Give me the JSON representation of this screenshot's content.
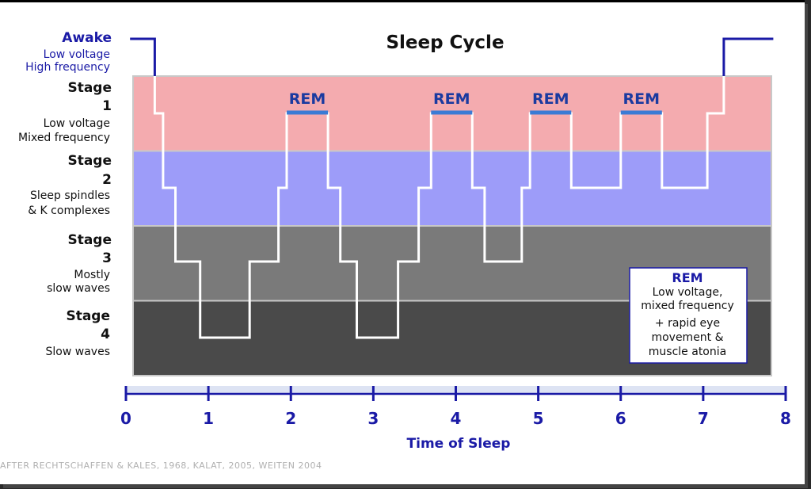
{
  "chart_data": {
    "type": "line",
    "title": "Sleep Cycle",
    "xlabel": "Time of Sleep",
    "xlim": [
      0,
      8
    ],
    "xticks": [
      "0",
      "1",
      "2",
      "3",
      "4",
      "5",
      "6",
      "7",
      "8"
    ],
    "awake": {
      "label": "Awake",
      "desc": [
        "Low voltage",
        "High frequency"
      ]
    },
    "stages": [
      {
        "label": "Stage",
        "number": "1",
        "desc": [
          "Low voltage",
          "Mixed frequency"
        ],
        "color": "#f4abaf"
      },
      {
        "label": "Stage",
        "number": "2",
        "desc": [
          "Sleep spindles",
          "& K complexes"
        ],
        "color": "#9d9cf9"
      },
      {
        "label": "Stage",
        "number": "3",
        "desc": [
          "Mostly",
          "slow waves"
        ],
        "color": "#7a7a7a"
      },
      {
        "label": "Stage",
        "number": "4",
        "desc": [
          "Slow waves"
        ],
        "color": "#4a4a4a"
      }
    ],
    "series": [
      {
        "x": [
          0.05,
          0.35,
          0.35,
          0.45,
          0.45,
          0.6,
          0.6,
          0.9,
          0.9,
          1.5,
          1.5,
          1.85,
          1.85,
          1.95,
          1.95,
          2.45,
          2.45,
          2.6,
          2.6,
          2.8,
          2.8,
          3.3,
          3.3,
          3.55,
          3.55,
          3.7,
          3.7,
          4.2,
          4.2,
          4.35,
          4.35,
          4.8,
          4.8,
          4.9,
          4.9,
          5.4,
          5.4,
          6.0,
          6.0,
          6.5,
          6.5,
          7.05,
          7.05,
          7.25,
          7.25,
          7.85
        ],
        "depth": [
          0,
          0,
          1,
          1,
          2,
          2,
          3,
          3,
          4,
          4,
          3,
          3,
          2,
          2,
          1,
          1,
          2,
          2,
          3,
          3,
          4,
          4,
          3,
          3,
          2,
          2,
          1,
          1,
          2,
          2,
          3,
          3,
          2,
          2,
          1,
          1,
          2,
          2,
          1,
          1,
          2,
          2,
          1,
          1,
          0,
          0
        ]
      }
    ],
    "rem_periods": [
      {
        "label": "REM",
        "x": [
          1.95,
          2.45
        ]
      },
      {
        "label": "REM",
        "x": [
          3.7,
          4.2
        ]
      },
      {
        "label": "REM",
        "x": [
          4.9,
          5.4
        ]
      },
      {
        "label": "REM",
        "x": [
          6.0,
          6.5
        ]
      }
    ],
    "rem_box": {
      "heading": "REM",
      "lines": [
        "Low voltage,",
        "mixed frequency",
        "+ rapid eye",
        "movement &",
        "muscle atonia"
      ]
    },
    "credit": "AFTER RECHTSCHAFFEN & KALES, 1968, KALAT, 2005, WEITEN 2004",
    "colors": {
      "hypnogram_awake": "#1a1aa6",
      "hypnogram_sleep": "#ffffff",
      "rem_marker": "#3a7bd5",
      "axis": "#1a1aa6"
    }
  }
}
